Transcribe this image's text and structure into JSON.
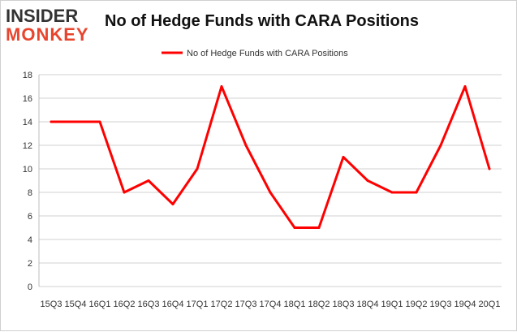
{
  "logo": {
    "line1": "INSIDER",
    "line2": "MONKEY"
  },
  "chart_data": {
    "type": "line",
    "title": "No of Hedge Funds with CARA Positions",
    "xlabel": "",
    "ylabel": "",
    "categories": [
      "15Q3",
      "15Q4",
      "16Q1",
      "16Q2",
      "16Q3",
      "16Q4",
      "17Q1",
      "17Q2",
      "17Q3",
      "17Q4",
      "18Q1",
      "18Q2",
      "18Q3",
      "18Q4",
      "19Q1",
      "19Q2",
      "19Q3",
      "19Q4",
      "20Q1"
    ],
    "series": [
      {
        "name": "No of Hedge Funds with CARA Positions",
        "values": [
          14,
          14,
          14,
          8,
          9,
          7,
          10,
          17,
          12,
          8,
          5,
          5,
          11,
          9,
          8,
          8,
          12,
          17,
          10
        ],
        "color": "#ff0000"
      }
    ],
    "ylim": [
      0,
      18
    ],
    "yticks": [
      0,
      2,
      4,
      6,
      8,
      10,
      12,
      14,
      16,
      18
    ],
    "grid": true,
    "legend_position": "top-center"
  }
}
